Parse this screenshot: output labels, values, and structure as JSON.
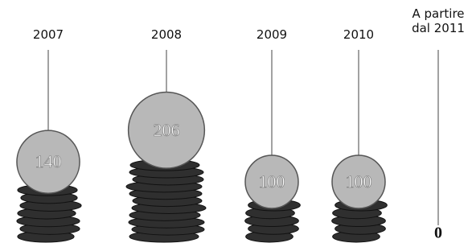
{
  "chart_data": {
    "type": "coin",
    "categories": [
      "2007",
      "2008",
      "2009",
      "2010",
      "A partire dal 2011"
    ],
    "values": [
      140,
      206,
      100,
      100,
      0
    ],
    "color": "#b8b8b8",
    "pile_color": "#2f2f2f"
  }
}
